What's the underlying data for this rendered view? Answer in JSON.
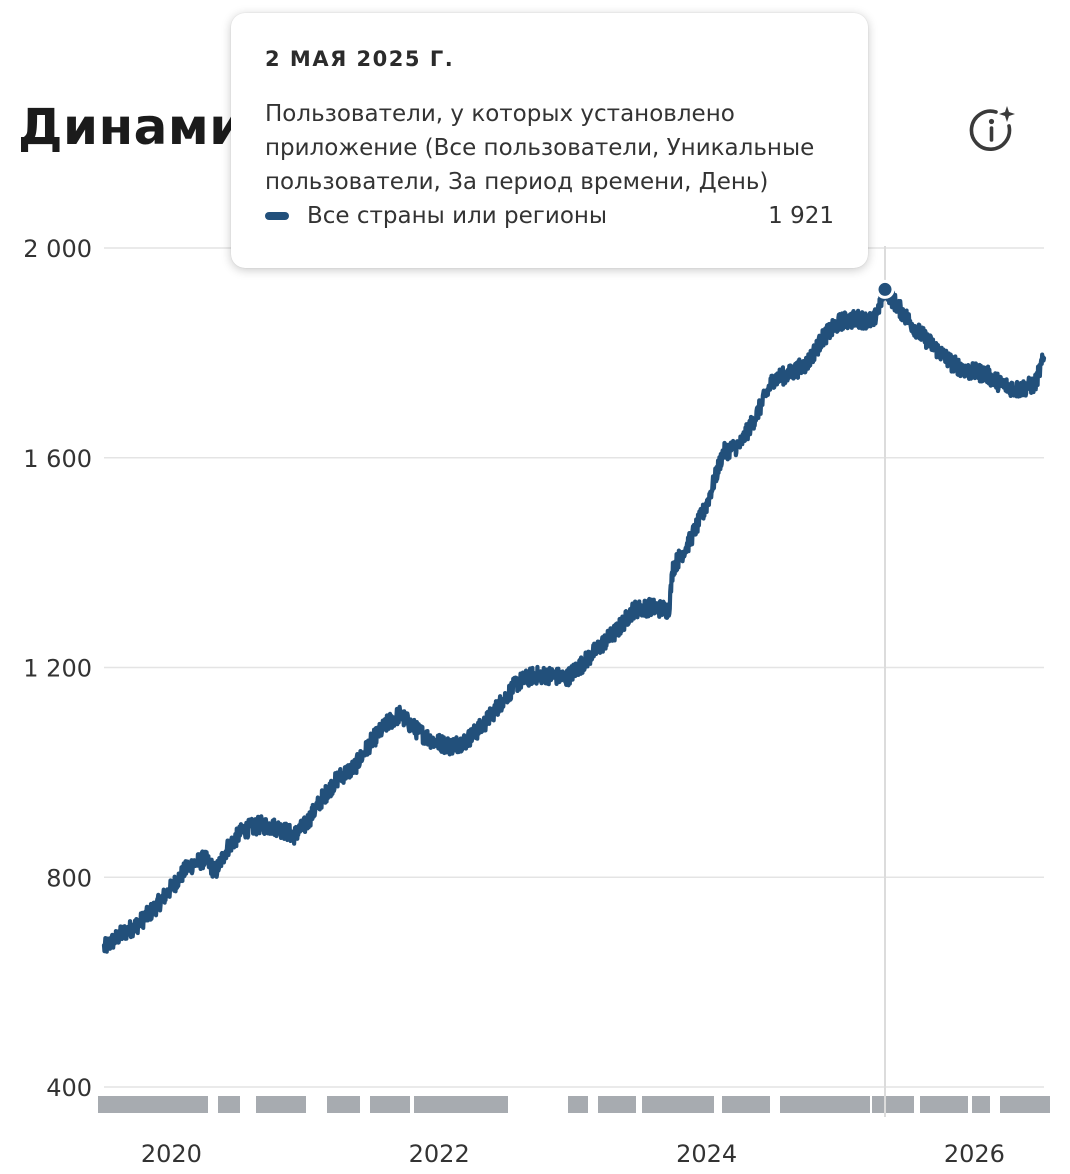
{
  "header": {
    "title": "Динамич"
  },
  "tooltip": {
    "date": "2 МАЯ 2025 Г.",
    "metric": "Пользователи, у которых установлено приложение (Все пользователи, Уникальные пользователи, За период времени, День)",
    "series_label": "Все страны или регионы",
    "value": "1 921"
  },
  "colors": {
    "series": "#22507b",
    "grid": "#e4e4e4",
    "crosshair": "#dcdcdc",
    "annotation": "#8a8f96"
  },
  "chart_data": {
    "type": "line",
    "x_range": [
      "2019-07-01",
      "2026-07-10"
    ],
    "ylim": [
      400,
      2000
    ],
    "grid": true,
    "y_ticks": [
      {
        "value": 2000,
        "label": "2 000"
      },
      {
        "value": 1600,
        "label": "1 600"
      },
      {
        "value": 1200,
        "label": "1 200"
      },
      {
        "value": 800,
        "label": "800"
      },
      {
        "value": 400,
        "label": "400"
      }
    ],
    "x_ticks": [
      {
        "date": "2020-01-01",
        "label": "2020"
      },
      {
        "date": "2022-01-01",
        "label": "2022"
      },
      {
        "date": "2024-01-01",
        "label": "2024"
      },
      {
        "date": "2026-01-01",
        "label": "2026"
      }
    ],
    "highlight": {
      "date": "2025-05-02",
      "value": 1921
    },
    "series": [
      {
        "points": [
          [
            "2019-07-01",
            665
          ],
          [
            "2019-08-15",
            690
          ],
          [
            "2019-10-01",
            710
          ],
          [
            "2019-11-15",
            740
          ],
          [
            "2020-01-01",
            780
          ],
          [
            "2020-02-15",
            820
          ],
          [
            "2020-04-01",
            835
          ],
          [
            "2020-05-01",
            810
          ],
          [
            "2020-06-01",
            855
          ],
          [
            "2020-07-15",
            890
          ],
          [
            "2020-09-01",
            900
          ],
          [
            "2020-10-15",
            895
          ],
          [
            "2020-12-01",
            880
          ],
          [
            "2021-01-01",
            900
          ],
          [
            "2021-02-15",
            950
          ],
          [
            "2021-04-01",
            990
          ],
          [
            "2021-05-15",
            1010
          ],
          [
            "2021-07-01",
            1060
          ],
          [
            "2021-08-15",
            1095
          ],
          [
            "2021-09-15",
            1110
          ],
          [
            "2021-11-01",
            1080
          ],
          [
            "2021-12-15",
            1060
          ],
          [
            "2022-02-01",
            1050
          ],
          [
            "2022-03-15",
            1060
          ],
          [
            "2022-05-01",
            1090
          ],
          [
            "2022-06-15",
            1130
          ],
          [
            "2022-08-01",
            1170
          ],
          [
            "2022-09-15",
            1185
          ],
          [
            "2022-11-01",
            1185
          ],
          [
            "2022-12-15",
            1180
          ],
          [
            "2023-02-01",
            1210
          ],
          [
            "2023-03-15",
            1240
          ],
          [
            "2023-05-01",
            1270
          ],
          [
            "2023-06-15",
            1310
          ],
          [
            "2023-08-01",
            1315
          ],
          [
            "2023-09-20",
            1310
          ],
          [
            "2023-10-01",
            1390
          ],
          [
            "2023-11-15",
            1440
          ],
          [
            "2024-01-01",
            1510
          ],
          [
            "2024-02-15",
            1610
          ],
          [
            "2024-04-01",
            1625
          ],
          [
            "2024-05-15",
            1680
          ],
          [
            "2024-07-01",
            1750
          ],
          [
            "2024-08-15",
            1760
          ],
          [
            "2024-10-01",
            1780
          ],
          [
            "2024-11-15",
            1830
          ],
          [
            "2025-01-01",
            1860
          ],
          [
            "2025-02-15",
            1865
          ],
          [
            "2025-04-01",
            1860
          ],
          [
            "2025-05-02",
            1921
          ],
          [
            "2025-06-15",
            1880
          ],
          [
            "2025-08-01",
            1840
          ],
          [
            "2025-09-15",
            1810
          ],
          [
            "2025-11-01",
            1780
          ],
          [
            "2025-12-15",
            1765
          ],
          [
            "2026-02-01",
            1760
          ],
          [
            "2026-03-15",
            1740
          ],
          [
            "2026-05-01",
            1730
          ],
          [
            "2026-06-15",
            1740
          ],
          [
            "2026-07-10",
            1790
          ]
        ]
      }
    ]
  }
}
